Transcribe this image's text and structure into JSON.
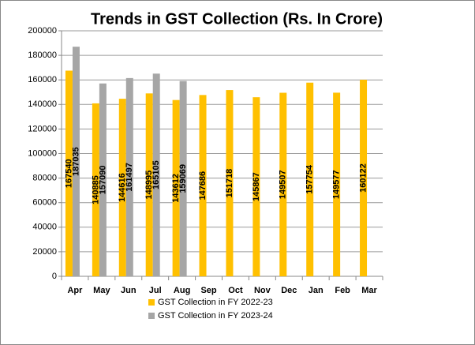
{
  "chart_data": {
    "type": "bar",
    "title": "Trends in GST Collection (Rs. In Crore)",
    "categories": [
      "Apr",
      "May",
      "Jun",
      "Jul",
      "Aug",
      "Sep",
      "Oct",
      "Nov",
      "Dec",
      "Jan",
      "Feb",
      "Mar"
    ],
    "series": [
      {
        "name": "GST Collection in FY 2022-23",
        "color": "#ffc000",
        "values": [
          167540,
          140885,
          144616,
          148995,
          143612,
          147686,
          151718,
          145867,
          149507,
          157754,
          149577,
          160122
        ]
      },
      {
        "name": "GST Collection in FY 2023-24",
        "color": "#a6a6a6",
        "values": [
          187035,
          157090,
          161497,
          165105,
          159069,
          null,
          null,
          null,
          null,
          null,
          null,
          null
        ]
      }
    ],
    "ylim": [
      0,
      200000
    ],
    "yticks": [
      0,
      20000,
      40000,
      60000,
      80000,
      100000,
      120000,
      140000,
      160000,
      180000,
      200000
    ],
    "grid": true,
    "legend": "bottom"
  }
}
